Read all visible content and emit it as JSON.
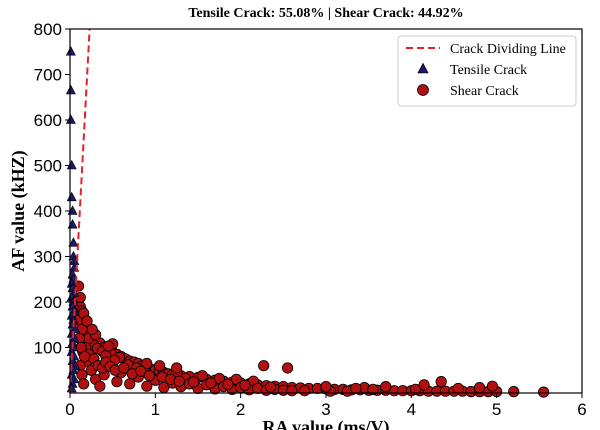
{
  "chart_data": {
    "type": "scatter",
    "title": "Tensile Crack: 55.08% | Shear Crack: 44.92%",
    "xlabel": "RA value (ms/V)",
    "ylabel": "AF value (kHZ)",
    "xlim": [
      0,
      6
    ],
    "ylim": [
      0,
      800
    ],
    "xticks": [
      "0",
      "1",
      "2",
      "3",
      "4",
      "5",
      "6"
    ],
    "yticks": [
      "100",
      "200",
      "300",
      "400",
      "500",
      "600",
      "700",
      "800"
    ],
    "grid": false,
    "legend_position": "top-right",
    "dividing_line": {
      "name": "Crack Dividing Line",
      "color": "#e0222a",
      "style": "dashed",
      "points": [
        [
          0,
          0
        ],
        [
          0.23,
          800
        ]
      ]
    },
    "series": [
      {
        "name": "Tensile Crack",
        "marker": "triangle",
        "color": "#1a1a6e",
        "points": [
          [
            0.01,
            750
          ],
          [
            0.01,
            665
          ],
          [
            0.01,
            600
          ],
          [
            0.02,
            500
          ],
          [
            0.02,
            430
          ],
          [
            0.03,
            400
          ],
          [
            0.03,
            370
          ],
          [
            0.04,
            330
          ],
          [
            0.04,
            300
          ],
          [
            0.05,
            290
          ],
          [
            0.05,
            275
          ],
          [
            0.03,
            260
          ],
          [
            0.04,
            250
          ],
          [
            0.02,
            240
          ],
          [
            0.03,
            230
          ],
          [
            0.05,
            220
          ],
          [
            0.02,
            210
          ],
          [
            0.04,
            200
          ],
          [
            0.03,
            190
          ],
          [
            0.05,
            180
          ],
          [
            0.02,
            170
          ],
          [
            0.04,
            160
          ],
          [
            0.03,
            150
          ],
          [
            0.06,
            140
          ],
          [
            0.02,
            130
          ],
          [
            0.05,
            120
          ],
          [
            0.03,
            110
          ],
          [
            0.04,
            100
          ],
          [
            0.02,
            90
          ],
          [
            0.05,
            80
          ],
          [
            0.03,
            70
          ],
          [
            0.06,
            60
          ],
          [
            0.04,
            50
          ],
          [
            0.02,
            40
          ],
          [
            0.05,
            30
          ],
          [
            0.03,
            20
          ],
          [
            0.02,
            10
          ]
        ]
      },
      {
        "name": "Shear Crack",
        "marker": "circle",
        "color": "#b01010",
        "points": [
          [
            0.1,
            235
          ],
          [
            0.1,
            205
          ],
          [
            0.12,
            190
          ],
          [
            0.14,
            180
          ],
          [
            0.16,
            165
          ],
          [
            0.18,
            155
          ],
          [
            0.2,
            145
          ],
          [
            0.12,
            170
          ],
          [
            0.15,
            150
          ],
          [
            0.1,
            160
          ],
          [
            0.22,
            135
          ],
          [
            0.25,
            125
          ],
          [
            0.18,
            130
          ],
          [
            0.14,
            140
          ],
          [
            0.3,
            115
          ],
          [
            0.35,
            110
          ],
          [
            0.28,
            105
          ],
          [
            0.22,
            120
          ],
          [
            0.4,
            100
          ],
          [
            0.45,
            95
          ],
          [
            0.5,
            90
          ],
          [
            0.32,
            98
          ],
          [
            0.38,
            92
          ],
          [
            0.55,
            85
          ],
          [
            0.6,
            80
          ],
          [
            0.48,
            88
          ],
          [
            0.42,
            82
          ],
          [
            0.65,
            75
          ],
          [
            0.7,
            70
          ],
          [
            0.75,
            68
          ],
          [
            0.58,
            78
          ],
          [
            0.52,
            72
          ],
          [
            0.8,
            65
          ],
          [
            0.85,
            60
          ],
          [
            0.9,
            58
          ],
          [
            0.68,
            62
          ],
          [
            0.78,
            55
          ],
          [
            0.95,
            52
          ],
          [
            1.0,
            50
          ],
          [
            1.05,
            48
          ],
          [
            0.88,
            46
          ],
          [
            1.1,
            45
          ],
          [
            1.15,
            42
          ],
          [
            1.2,
            40
          ],
          [
            1.3,
            38
          ],
          [
            1.25,
            44
          ],
          [
            1.4,
            36
          ],
          [
            1.5,
            34
          ],
          [
            1.35,
            32
          ],
          [
            1.6,
            30
          ],
          [
            1.7,
            28
          ],
          [
            1.55,
            38
          ],
          [
            1.8,
            26
          ],
          [
            1.9,
            24
          ],
          [
            1.75,
            32
          ],
          [
            2.0,
            22
          ],
          [
            2.1,
            20
          ],
          [
            1.95,
            30
          ],
          [
            2.2,
            18
          ],
          [
            2.3,
            16
          ],
          [
            2.15,
            26
          ],
          [
            2.4,
            15
          ],
          [
            2.5,
            14
          ],
          [
            2.6,
            12
          ],
          [
            2.7,
            11
          ],
          [
            2.8,
            10
          ],
          [
            2.9,
            10
          ],
          [
            3.0,
            9
          ],
          [
            3.1,
            8
          ],
          [
            3.2,
            8
          ],
          [
            3.3,
            7
          ],
          [
            3.4,
            7
          ],
          [
            3.5,
            6
          ],
          [
            3.6,
            6
          ],
          [
            3.7,
            6
          ],
          [
            3.8,
            5
          ],
          [
            3.9,
            5
          ],
          [
            4.0,
            5
          ],
          [
            4.1,
            5
          ],
          [
            4.2,
            4
          ],
          [
            4.3,
            4
          ],
          [
            4.4,
            4
          ],
          [
            4.5,
            4
          ],
          [
            4.6,
            4
          ],
          [
            4.7,
            3
          ],
          [
            4.8,
            3
          ],
          [
            4.9,
            3
          ],
          [
            5.0,
            3
          ],
          [
            5.2,
            3
          ],
          [
            5.55,
            2
          ],
          [
            2.27,
            60
          ],
          [
            2.55,
            55
          ],
          [
            1.05,
            60
          ],
          [
            0.9,
            65
          ],
          [
            1.25,
            55
          ],
          [
            0.5,
            108
          ],
          [
            0.45,
            103
          ],
          [
            0.12,
            210
          ],
          [
            0.16,
            175
          ],
          [
            0.2,
            158
          ],
          [
            0.3,
            128
          ],
          [
            0.26,
            140
          ],
          [
            0.15,
            90
          ],
          [
            0.2,
            70
          ],
          [
            0.25,
            50
          ],
          [
            0.3,
            30
          ],
          [
            0.35,
            15
          ],
          [
            0.4,
            40
          ],
          [
            0.55,
            25
          ],
          [
            0.6,
            45
          ],
          [
            0.7,
            20
          ],
          [
            0.8,
            35
          ],
          [
            0.9,
            15
          ],
          [
            1.0,
            28
          ],
          [
            1.1,
            12
          ],
          [
            1.2,
            22
          ],
          [
            1.3,
            14
          ],
          [
            1.4,
            20
          ],
          [
            1.5,
            10
          ],
          [
            1.6,
            18
          ],
          [
            1.7,
            9
          ],
          [
            1.8,
            14
          ],
          [
            1.9,
            8
          ],
          [
            2.0,
            12
          ],
          [
            2.1,
            7
          ],
          [
            2.2,
            10
          ],
          [
            2.3,
            6
          ],
          [
            2.4,
            8
          ],
          [
            2.5,
            6
          ],
          [
            2.6,
            5
          ],
          [
            2.75,
            5
          ],
          [
            3.05,
            4
          ],
          [
            3.25,
            4
          ],
          [
            3.45,
            12
          ],
          [
            3.7,
            14
          ],
          [
            4.05,
            8
          ],
          [
            4.15,
            18
          ],
          [
            4.35,
            25
          ],
          [
            4.55,
            10
          ],
          [
            4.8,
            12
          ],
          [
            4.95,
            15
          ],
          [
            3.0,
            14
          ],
          [
            3.35,
            10
          ],
          [
            3.55,
            8
          ],
          [
            0.18,
            100
          ],
          [
            0.22,
            85
          ],
          [
            0.28,
            75
          ],
          [
            0.33,
            60
          ],
          [
            0.38,
            55
          ],
          [
            0.42,
            68
          ],
          [
            0.47,
            58
          ],
          [
            0.53,
            50
          ],
          [
            0.63,
            55
          ],
          [
            0.73,
            42
          ],
          [
            0.83,
            48
          ],
          [
            0.93,
            38
          ],
          [
            1.08,
            35
          ],
          [
            1.18,
            30
          ],
          [
            1.28,
            26
          ],
          [
            1.45,
            24
          ],
          [
            1.65,
            22
          ],
          [
            1.85,
            19
          ],
          [
            2.05,
            17
          ],
          [
            2.35,
            13
          ],
          [
            0.12,
            60
          ],
          [
            0.14,
            40
          ],
          [
            0.16,
            20
          ],
          [
            0.11,
            120
          ],
          [
            0.13,
            100
          ],
          [
            0.17,
            80
          ]
        ]
      }
    ]
  }
}
